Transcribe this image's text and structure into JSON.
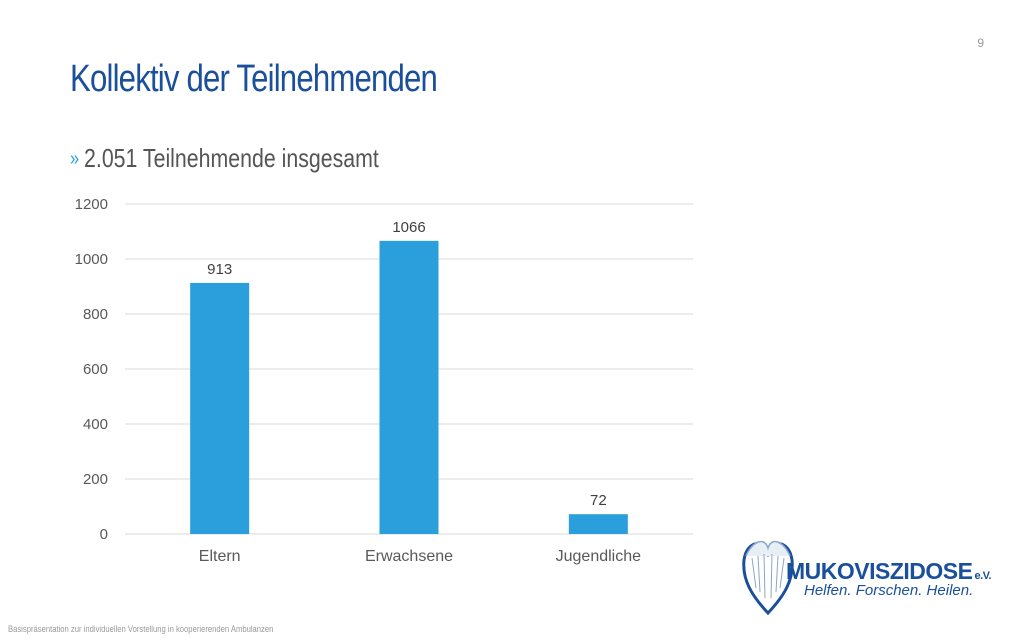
{
  "slide": {
    "page_number": "9",
    "title": "Kollektiv der Teilnehmenden",
    "bullet_marker": "»",
    "bullet_text": "2.051 Teilnehmende insgesamt",
    "footer": "Basispräsentation zur individuellen Vorstellung in kooperierenden Ambulanzen"
  },
  "logo": {
    "wordmark": "MUKOVISZIDOSE",
    "suffix": "e.V.",
    "tagline": "Helfen. Forschen. Heilen."
  },
  "colors": {
    "title": "#1a4f9c",
    "bar": "#2a9fdb",
    "accent": "#2aa0dc"
  },
  "chart_data": {
    "type": "bar",
    "categories": [
      "Eltern",
      "Erwachsene",
      "Jugendliche"
    ],
    "values": [
      913,
      1066,
      72
    ],
    "data_labels": [
      "913",
      "1066",
      "72"
    ],
    "yticks": [
      "0",
      "200",
      "400",
      "600",
      "800",
      "1000",
      "1200"
    ],
    "ylim": [
      0,
      1200
    ],
    "grid": true,
    "legend": "none"
  }
}
